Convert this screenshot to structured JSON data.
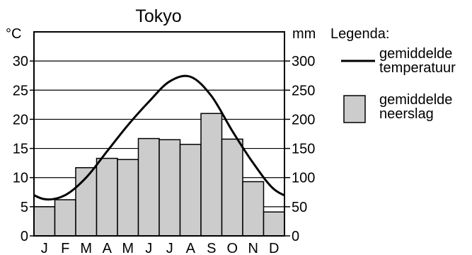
{
  "chart_data": {
    "type": "bar",
    "title": "Tokyo",
    "categories": [
      "J",
      "F",
      "M",
      "A",
      "M",
      "J",
      "J",
      "A",
      "S",
      "O",
      "N",
      "D"
    ],
    "series": [
      {
        "name": "gemiddelde neerslag",
        "type": "bar",
        "axis": "right",
        "values": [
          50,
          62,
          117,
          133,
          131,
          167,
          165,
          157,
          210,
          166,
          93,
          41
        ],
        "color": "#cccccc"
      },
      {
        "name": "gemiddelde temperatuur",
        "type": "line",
        "axis": "left",
        "values": [
          6.3,
          7.0,
          10.0,
          14.5,
          19.0,
          23.0,
          26.5,
          27.3,
          24.0,
          18.0,
          12.5,
          8.0
        ],
        "color": "#000000"
      }
    ],
    "ylabel_left": "°C",
    "ylabel_right": "mm",
    "ylim_left": [
      0,
      35
    ],
    "ylim_right": [
      0,
      350
    ],
    "yticks_left": [
      0,
      5,
      10,
      15,
      20,
      25,
      30
    ],
    "yticks_right": [
      0,
      50,
      100,
      150,
      200,
      250,
      300
    ],
    "grid": true,
    "legend_position": "right",
    "legend": {
      "title": "Legenda:",
      "line_label_1": "gemiddelde",
      "line_label_2": "temperatuur",
      "bar_label_1": "gemiddelde",
      "bar_label_2": "neerslag"
    }
  }
}
